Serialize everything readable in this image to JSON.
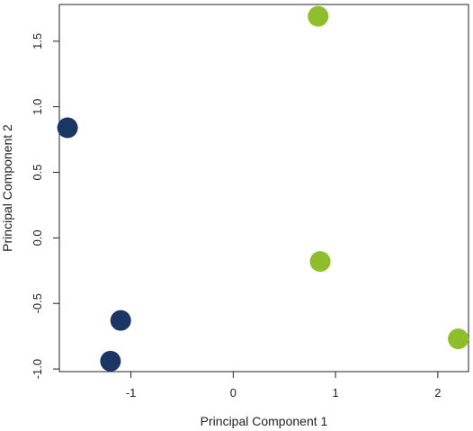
{
  "chart_data": {
    "type": "scatter",
    "xlabel": "Principal Component 1",
    "ylabel": "Principal Component 2",
    "xlim": [
      -1.7,
      2.3
    ],
    "ylim": [
      -1.02,
      1.78
    ],
    "x_ticks": [
      -1,
      0,
      1,
      2
    ],
    "y_ticks": [
      -1.0,
      -0.5,
      0.0,
      0.5,
      1.0,
      1.5
    ],
    "x_tick_labels": [
      "-1",
      "0",
      "1",
      "2"
    ],
    "y_tick_labels": [
      "-1.0",
      "-0.5",
      "0.0",
      "0.5",
      "1.0",
      "1.5"
    ],
    "grid": false,
    "legend": "none",
    "series": [
      {
        "color": "#1b3564",
        "points": [
          {
            "x": -1.62,
            "y": 0.84
          },
          {
            "x": -1.1,
            "y": -0.63
          },
          {
            "x": -1.2,
            "y": -0.94
          }
        ]
      },
      {
        "color": "#8fbe2c",
        "points": [
          {
            "x": 0.83,
            "y": 1.69
          },
          {
            "x": 0.85,
            "y": -0.18
          },
          {
            "x": 2.2,
            "y": -0.77
          }
        ]
      }
    ]
  }
}
